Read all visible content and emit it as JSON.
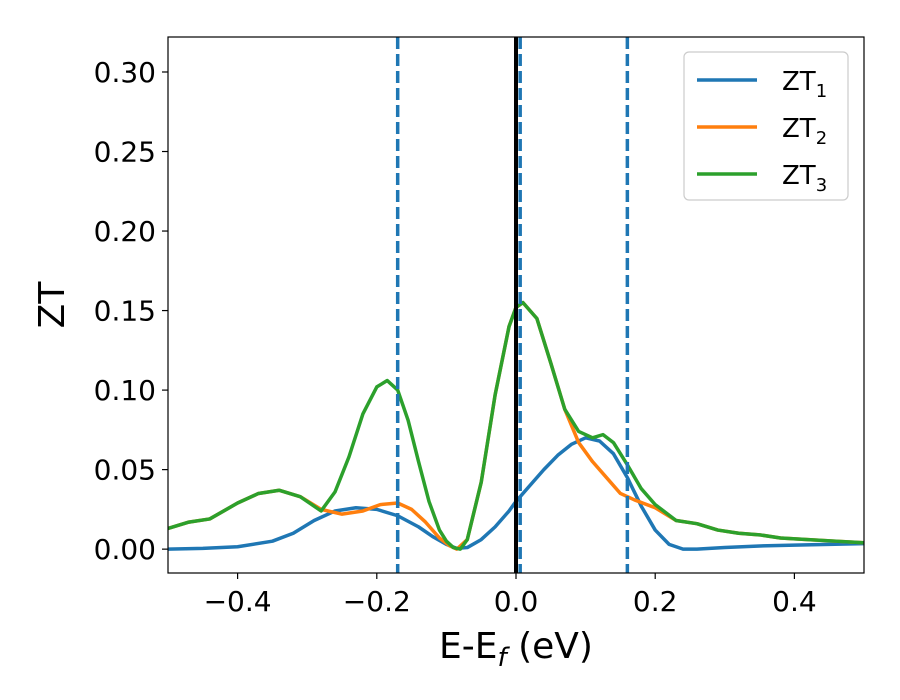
{
  "chart_data": {
    "type": "line",
    "xlabel": {
      "main": "E-E",
      "sub": "f",
      "unit": " (eV)"
    },
    "ylabel": "ZT",
    "xlim": [
      -0.5,
      0.5
    ],
    "ylim": [
      -0.015,
      0.322
    ],
    "x_ticks": [
      -0.4,
      -0.2,
      0.0,
      0.2,
      0.4
    ],
    "x_tick_labels": [
      "−0.4",
      "−0.2",
      "0.0",
      "0.2",
      "0.4"
    ],
    "y_ticks": [
      0.0,
      0.05,
      0.1,
      0.15,
      0.2,
      0.25,
      0.3
    ],
    "y_tick_labels": [
      "0.00",
      "0.05",
      "0.10",
      "0.15",
      "0.20",
      "0.25",
      "0.30"
    ],
    "grid": false,
    "legend_position": "top-right",
    "series": [
      {
        "name": "ZT",
        "sub": "1",
        "color": "#1f77b4",
        "x": [
          -0.5,
          -0.45,
          -0.4,
          -0.35,
          -0.32,
          -0.29,
          -0.26,
          -0.23,
          -0.2,
          -0.17,
          -0.14,
          -0.12,
          -0.1,
          -0.085,
          -0.07,
          -0.05,
          -0.03,
          -0.01,
          0.0,
          0.02,
          0.04,
          0.06,
          0.08,
          0.1,
          0.12,
          0.14,
          0.16,
          0.18,
          0.2,
          0.22,
          0.24,
          0.26,
          0.3,
          0.35,
          0.4,
          0.45,
          0.5
        ],
        "y": [
          0.0,
          0.0005,
          0.0015,
          0.005,
          0.01,
          0.018,
          0.024,
          0.026,
          0.025,
          0.021,
          0.014,
          0.008,
          0.003,
          0.0005,
          0.001,
          0.006,
          0.014,
          0.024,
          0.03,
          0.04,
          0.05,
          0.059,
          0.066,
          0.07,
          0.068,
          0.06,
          0.045,
          0.027,
          0.012,
          0.003,
          0.0,
          0.0,
          0.001,
          0.002,
          0.0025,
          0.003,
          0.0035
        ]
      },
      {
        "name": "ZT",
        "sub": "2",
        "color": "#ff7f0e",
        "x": [
          -0.5,
          -0.47,
          -0.44,
          -0.4,
          -0.37,
          -0.34,
          -0.31,
          -0.28,
          -0.25,
          -0.22,
          -0.195,
          -0.17,
          -0.15,
          -0.13,
          -0.11,
          -0.095,
          -0.085,
          -0.07,
          -0.05,
          -0.03,
          -0.01,
          0.0,
          0.01,
          0.03,
          0.05,
          0.07,
          0.09,
          0.11,
          0.13,
          0.15,
          0.17,
          0.2,
          0.23,
          0.26,
          0.29,
          0.32,
          0.35,
          0.38,
          0.42,
          0.46,
          0.5
        ],
        "y": [
          0.013,
          0.017,
          0.019,
          0.029,
          0.035,
          0.037,
          0.033,
          0.025,
          0.022,
          0.024,
          0.028,
          0.029,
          0.025,
          0.017,
          0.007,
          0.002,
          0.0,
          0.006,
          0.042,
          0.097,
          0.14,
          0.152,
          0.155,
          0.145,
          0.117,
          0.088,
          0.067,
          0.055,
          0.045,
          0.035,
          0.031,
          0.026,
          0.018,
          0.016,
          0.012,
          0.01,
          0.009,
          0.007,
          0.006,
          0.005,
          0.004
        ]
      },
      {
        "name": "ZT",
        "sub": "3",
        "color": "#2ca02c",
        "x": [
          -0.5,
          -0.47,
          -0.44,
          -0.4,
          -0.37,
          -0.34,
          -0.31,
          -0.28,
          -0.26,
          -0.24,
          -0.22,
          -0.2,
          -0.185,
          -0.17,
          -0.155,
          -0.14,
          -0.125,
          -0.11,
          -0.1,
          -0.09,
          -0.08,
          -0.07,
          -0.05,
          -0.03,
          -0.01,
          0.0,
          0.01,
          0.03,
          0.05,
          0.07,
          0.09,
          0.11,
          0.125,
          0.14,
          0.16,
          0.18,
          0.2,
          0.23,
          0.26,
          0.29,
          0.32,
          0.35,
          0.38,
          0.42,
          0.46,
          0.5
        ],
        "y": [
          0.013,
          0.017,
          0.019,
          0.029,
          0.035,
          0.037,
          0.033,
          0.024,
          0.036,
          0.058,
          0.085,
          0.102,
          0.106,
          0.1,
          0.081,
          0.055,
          0.03,
          0.012,
          0.005,
          0.001,
          0.0,
          0.006,
          0.042,
          0.097,
          0.14,
          0.152,
          0.155,
          0.145,
          0.117,
          0.088,
          0.074,
          0.07,
          0.072,
          0.067,
          0.053,
          0.038,
          0.028,
          0.018,
          0.016,
          0.012,
          0.01,
          0.009,
          0.007,
          0.006,
          0.005,
          0.004
        ]
      }
    ],
    "vlines": [
      {
        "x": -0.17,
        "style": "dashed",
        "color": "#1f77b4"
      },
      {
        "x": 0.0,
        "style": "solid",
        "color": "#000000"
      },
      {
        "x": 0.006,
        "style": "dashed",
        "color": "#1f77b4"
      },
      {
        "x": 0.16,
        "style": "dashed",
        "color": "#1f77b4"
      }
    ]
  }
}
